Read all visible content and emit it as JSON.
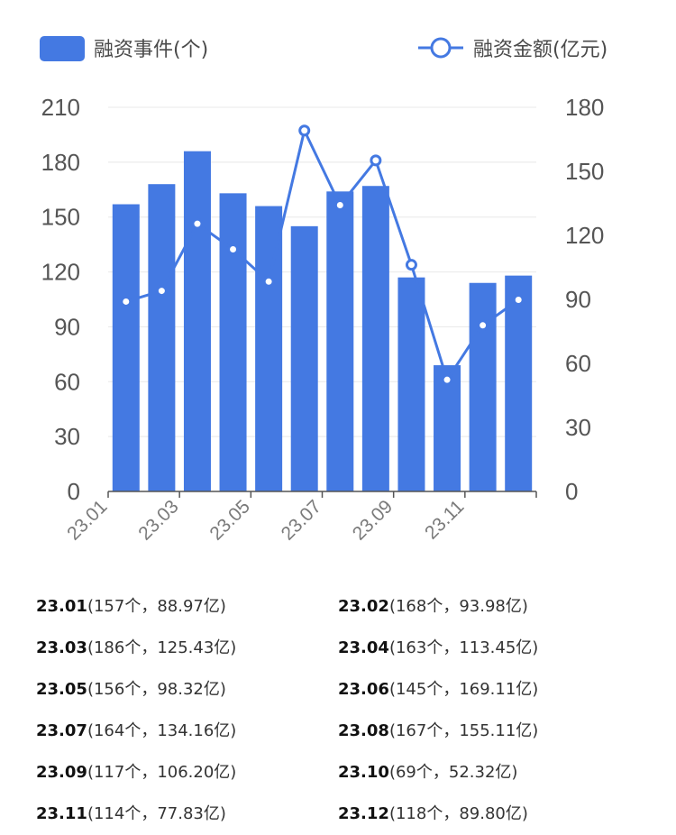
{
  "legend": {
    "bar_label": "融资事件(个)",
    "line_label": "融资金额(亿元)"
  },
  "colors": {
    "bar": "#4479e2",
    "line": "#4479e2",
    "grid": "#e8e8e8",
    "axis": "#555555"
  },
  "chart_data": {
    "type": "bar",
    "categories": [
      "23.01",
      "23.02",
      "23.03",
      "23.04",
      "23.05",
      "23.06",
      "23.07",
      "23.08",
      "23.09",
      "23.10",
      "23.11",
      "23.12"
    ],
    "x_tick_labels": [
      "23.01",
      "23.03",
      "23.05",
      "23.07",
      "23.09",
      "23.11"
    ],
    "series": [
      {
        "name": "融资事件(个)",
        "type": "bar",
        "axis": "left",
        "values": [
          157,
          168,
          186,
          163,
          156,
          145,
          164,
          167,
          117,
          69,
          114,
          118
        ]
      },
      {
        "name": "融资金额(亿元)",
        "type": "line",
        "axis": "right",
        "values": [
          88.97,
          93.98,
          125.43,
          113.45,
          98.32,
          169.11,
          134.16,
          155.11,
          106.2,
          52.32,
          77.83,
          89.8
        ]
      }
    ],
    "y_left": {
      "min": 0,
      "max": 210,
      "ticks": [
        "0",
        "30",
        "60",
        "90",
        "120",
        "150",
        "180",
        "210"
      ]
    },
    "y_right": {
      "min": 0,
      "max": 180,
      "ticks": [
        "0",
        "30",
        "60",
        "90",
        "120",
        "150",
        "180"
      ]
    },
    "legend_position": "top",
    "grid": true
  },
  "summary": [
    {
      "month": "23.01",
      "detail": "(157个，88.97亿)"
    },
    {
      "month": "23.02",
      "detail": "(168个，93.98亿)"
    },
    {
      "month": "23.03",
      "detail": "(186个，125.43亿)"
    },
    {
      "month": "23.04",
      "detail": "(163个，113.45亿)"
    },
    {
      "month": "23.05",
      "detail": "(156个，98.32亿)"
    },
    {
      "month": "23.06",
      "detail": "(145个，169.11亿)"
    },
    {
      "month": "23.07",
      "detail": "(164个，134.16亿)"
    },
    {
      "month": "23.08",
      "detail": "(167个，155.11亿)"
    },
    {
      "month": "23.09",
      "detail": "(117个，106.20亿)"
    },
    {
      "month": "23.10",
      "detail": "(69个，52.32亿)"
    },
    {
      "month": "23.11",
      "detail": "(114个，77.83亿)"
    },
    {
      "month": "23.12",
      "detail": "(118个，89.80亿)"
    }
  ]
}
